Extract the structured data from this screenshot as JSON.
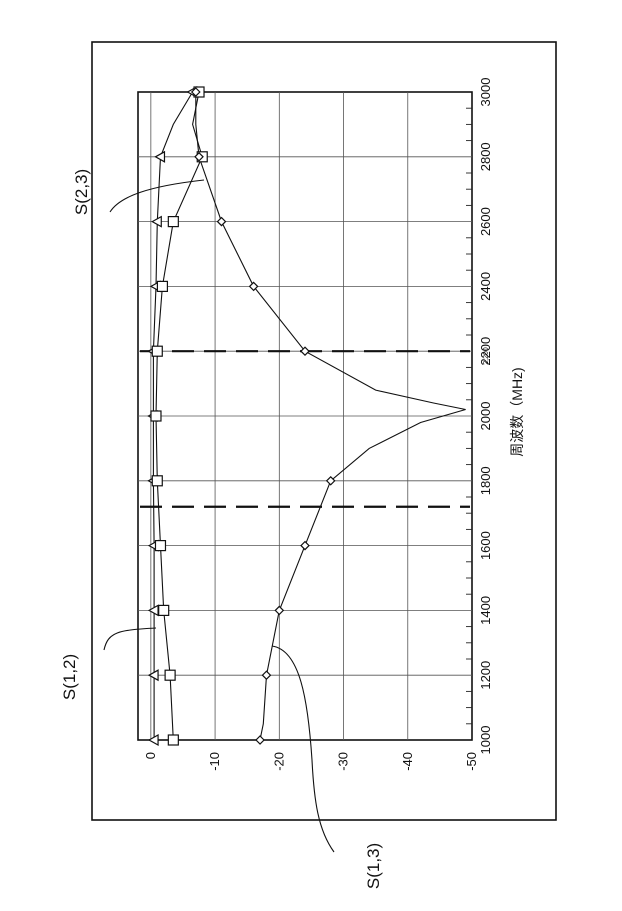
{
  "chart_data": {
    "type": "line",
    "orientation": "rotated-90-ccw",
    "xlabel": "周波数（MHz)",
    "ylabel": "",
    "x_ticks": [
      1000,
      1200,
      1400,
      1600,
      1800,
      2000,
      2200,
      2400,
      2600,
      2800,
      3000
    ],
    "y_ticks": [
      0,
      -10,
      -20,
      -30,
      -40,
      -50
    ],
    "xlim": [
      1000,
      3000
    ],
    "ylim": [
      -50,
      2
    ],
    "grid": true,
    "legend": "none",
    "markers_dashed_x": [
      1720,
      2200
    ],
    "series": [
      {
        "name": "S(1,2)",
        "marker": "triangle",
        "x": [
          1000,
          1200,
          1400,
          1600,
          1800,
          2000,
          2200,
          2400,
          2600,
          2800,
          2900,
          3000
        ],
        "y": [
          -0.5,
          -0.5,
          -0.5,
          -0.5,
          -0.4,
          -0.4,
          -0.4,
          -0.8,
          -1.0,
          -1.5,
          -3.5,
          -6.5
        ]
      },
      {
        "name": "S(2,3)",
        "marker": "square",
        "x": [
          1000,
          1200,
          1400,
          1600,
          1800,
          2000,
          2200,
          2400,
          2600,
          2800,
          2900,
          3000
        ],
        "y": [
          -3.5,
          -3.0,
          -2.0,
          -1.5,
          -1.0,
          -0.8,
          -1.0,
          -1.8,
          -3.5,
          -8.0,
          -6.5,
          -7.5
        ]
      },
      {
        "name": "S(1,3)",
        "marker": "diamond",
        "x": [
          1000,
          1050,
          1200,
          1400,
          1600,
          1800,
          1900,
          1980,
          2020,
          2040,
          2080,
          2200,
          2400,
          2600,
          2800,
          2900,
          3000
        ],
        "y": [
          -17,
          -17.5,
          -18,
          -20,
          -24,
          -28,
          -34,
          -42,
          -49,
          -44,
          -35,
          -24,
          -16,
          -11,
          -7.5,
          -7,
          -7
        ]
      }
    ],
    "callouts": [
      "S(1,2)",
      "S(2,3)",
      "S(1,3)"
    ],
    "stray_text": [
      "2,200"
    ]
  }
}
